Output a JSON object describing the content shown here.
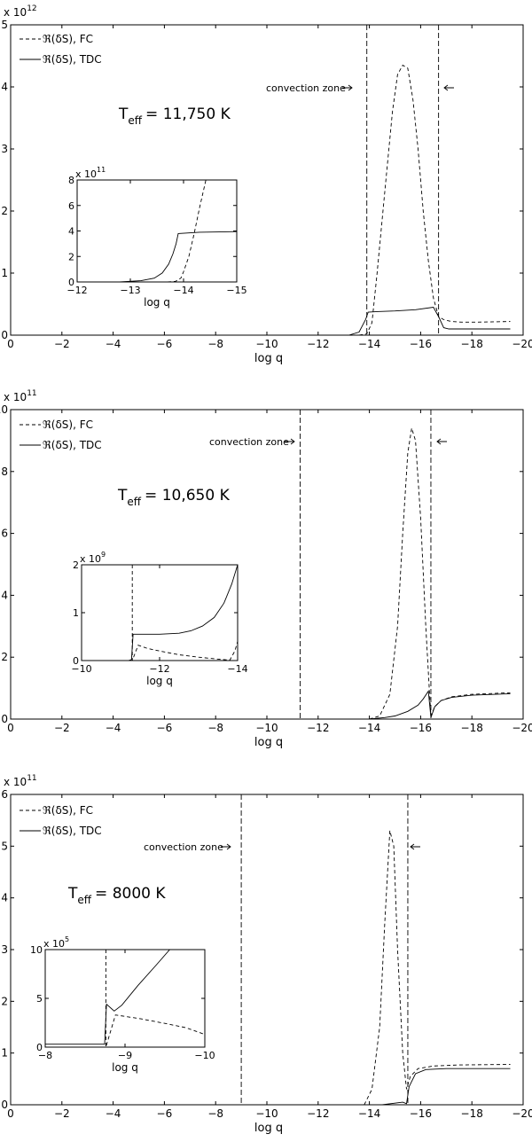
{
  "panels": [
    {
      "id": "panel1",
      "scale_base": "x 10",
      "scale_exp": "12",
      "ticks_y": [
        "0",
        "1",
        "2",
        "3",
        "4",
        "5"
      ],
      "ticks_x": [
        "0",
        "−2",
        "−4",
        "−6",
        "−8",
        "−10",
        "−12",
        "−14",
        "−16",
        "−18",
        "−20"
      ],
      "xlabel": "log q",
      "legend": [
        {
          "label": "ℜ(δS), FC",
          "style": "dashed"
        },
        {
          "label": "ℜ(δS), TDC",
          "style": "solid"
        }
      ],
      "annotation_cz": "convection zone",
      "teff_T": "T",
      "teff_sub": "eff",
      "teff_value": "= 11,750 K",
      "inset": {
        "scale_base": "x 10",
        "scale_exp": "11",
        "ticks_y": [
          "0",
          "2",
          "4",
          "6",
          "8"
        ],
        "ticks_x": [
          "−12",
          "−13",
          "−14",
          "−15"
        ],
        "xlabel": "log q"
      }
    },
    {
      "id": "panel2",
      "scale_base": "x 10",
      "scale_exp": "11",
      "ticks_y": [
        "0",
        "2",
        "4",
        "6",
        "8",
        "10"
      ],
      "ticks_x": [
        "0",
        "−2",
        "−4",
        "−6",
        "−8",
        "−10",
        "−12",
        "−14",
        "−16",
        "−18",
        "−20"
      ],
      "xlabel": "log q",
      "legend": [
        {
          "label": "ℜ(δS), FC",
          "style": "dashed"
        },
        {
          "label": "ℜ(δS), TDC",
          "style": "solid"
        }
      ],
      "annotation_cz": "convection zone",
      "teff_T": "T",
      "teff_sub": "eff",
      "teff_value": "= 10,650 K",
      "inset": {
        "scale_base": "x 10",
        "scale_exp": "9",
        "ticks_y": [
          "0",
          "1",
          "2"
        ],
        "ticks_x": [
          "−10",
          "−12",
          "−14"
        ],
        "xlabel": "log q"
      }
    },
    {
      "id": "panel3",
      "scale_base": "x 10",
      "scale_exp": "11",
      "ticks_y": [
        "0",
        "1",
        "2",
        "3",
        "4",
        "5",
        "6"
      ],
      "ticks_x": [
        "0",
        "−2",
        "−4",
        "−6",
        "−8",
        "−10",
        "−12",
        "−14",
        "−16",
        "−18",
        "−20"
      ],
      "xlabel": "log q",
      "legend": [
        {
          "label": "ℜ(δS), FC",
          "style": "dashed"
        },
        {
          "label": "ℜ(δS), TDC",
          "style": "solid"
        }
      ],
      "annotation_cz": "convection zone",
      "teff_T": "T",
      "teff_sub": "eff",
      "teff_value": "= 8000 K",
      "inset": {
        "scale_base": "x 10",
        "scale_exp": "5",
        "ticks_y": [
          "0",
          "5",
          "10"
        ],
        "ticks_x": [
          "−8",
          "−9",
          "−10"
        ],
        "xlabel": "log q"
      }
    }
  ],
  "chart_data": [
    {
      "type": "line",
      "xlabel": "log q",
      "ylabel": "",
      "xlim": [
        0,
        -20
      ],
      "ylim": [
        0,
        5
      ],
      "y_multiplier": "x 10^12",
      "teff": "11,750 K",
      "convection_zone": [
        -13.9,
        -16.7
      ],
      "series": [
        {
          "name": "ℜ(δS), FC",
          "style": "dashed",
          "x": [
            -13.6,
            -13.9,
            -14.1,
            -14.3,
            -14.6,
            -14.9,
            -15.1,
            -15.3,
            -15.5,
            -15.7,
            -15.9,
            -16.1,
            -16.3,
            -16.5,
            -16.7,
            -16.9,
            -17.2,
            -17.6,
            -18.2,
            -19.5
          ],
          "y": [
            0,
            0.02,
            0.2,
            1.0,
            2.3,
            3.6,
            4.2,
            4.35,
            4.3,
            3.8,
            3.0,
            2.0,
            1.2,
            0.6,
            0.3,
            0.25,
            0.22,
            0.21,
            0.21,
            0.22
          ]
        },
        {
          "name": "ℜ(δS), TDC",
          "style": "solid",
          "x": [
            -12.5,
            -13.2,
            -13.6,
            -13.85,
            -13.95,
            -14.3,
            -15.0,
            -15.8,
            -16.5,
            -16.7,
            -16.9,
            -17.1,
            -17.5,
            -18.0,
            -19.5
          ],
          "y": [
            0,
            0,
            0.05,
            0.25,
            0.37,
            0.38,
            0.39,
            0.41,
            0.45,
            0.3,
            0.12,
            0.1,
            0.1,
            0.1,
            0.1
          ]
        }
      ],
      "inset": {
        "xlim": [
          -12,
          -15
        ],
        "ylim": [
          0,
          8
        ],
        "y_multiplier": "x 10^11",
        "series": [
          {
            "name": "FC",
            "style": "dashed",
            "x": [
              -13.7,
              -13.85,
              -13.95,
              -14.0,
              -14.1,
              -14.2,
              -14.3,
              -14.42
            ],
            "y": [
              0,
              0.05,
              0.3,
              0.8,
              2.0,
              3.8,
              5.8,
              8.0
            ]
          },
          {
            "name": "TDC",
            "style": "solid",
            "x": [
              -12,
              -12.8,
              -13.2,
              -13.45,
              -13.6,
              -13.72,
              -13.8,
              -13.86,
              -13.9,
              -14.3,
              -15.0
            ],
            "y": [
              0,
              0,
              0.1,
              0.3,
              0.7,
              1.4,
              2.2,
              3.0,
              3.8,
              3.9,
              3.95
            ]
          }
        ]
      }
    },
    {
      "type": "line",
      "xlabel": "log q",
      "ylabel": "",
      "xlim": [
        0,
        -20
      ],
      "ylim": [
        0,
        10
      ],
      "y_multiplier": "x 10^11",
      "teff": "10,650 K",
      "convection_zone": [
        -11.3,
        -16.4
      ],
      "series": [
        {
          "name": "ℜ(δS), FC",
          "style": "dashed",
          "x": [
            -14.0,
            -14.4,
            -14.8,
            -15.1,
            -15.3,
            -15.5,
            -15.65,
            -15.8,
            -16.0,
            -16.2,
            -16.35,
            -16.4,
            -16.55,
            -16.8,
            -17.2,
            -18.0,
            -19.5
          ],
          "y": [
            0,
            0.1,
            0.8,
            3.0,
            6.0,
            8.6,
            9.4,
            9.0,
            6.5,
            3.0,
            0.8,
            0.1,
            0.4,
            0.6,
            0.72,
            0.8,
            0.85
          ]
        },
        {
          "name": "ℜ(δS), TDC",
          "style": "solid",
          "x": [
            -13.0,
            -14.0,
            -14.6,
            -15.0,
            -15.5,
            -15.9,
            -16.1,
            -16.3,
            -16.4,
            -16.55,
            -16.8,
            -17.2,
            -18.0,
            -19.5
          ],
          "y": [
            0,
            0,
            0.05,
            0.1,
            0.25,
            0.45,
            0.65,
            0.9,
            0.05,
            0.4,
            0.6,
            0.7,
            0.77,
            0.82
          ]
        }
      ],
      "inset": {
        "xlim": [
          -10,
          -14
        ],
        "ylim": [
          0,
          2
        ],
        "y_multiplier": "x 10^9",
        "series": [
          {
            "name": "FC",
            "style": "dashed",
            "x": [
              -11.3,
              -11.3,
              -11.45,
              -11.7,
              -12.0,
              -12.5,
              -13.0,
              -13.5,
              -13.8,
              -13.93,
              -14.0
            ],
            "y": [
              2.0,
              0.0,
              0.32,
              0.25,
              0.2,
              0.12,
              0.07,
              0.03,
              0.01,
              0.2,
              0.4
            ]
          },
          {
            "name": "TDC",
            "style": "solid",
            "x": [
              -10,
              -11.2,
              -11.28,
              -11.32,
              -11.6,
              -12.0,
              -12.5,
              -12.8,
              -13.1,
              -13.4,
              -13.65,
              -13.85,
              -14.0
            ],
            "y": [
              0,
              0,
              0.02,
              0.55,
              0.55,
              0.55,
              0.57,
              0.62,
              0.72,
              0.9,
              1.2,
              1.6,
              2.0
            ]
          }
        ]
      }
    },
    {
      "type": "line",
      "xlabel": "log q",
      "ylabel": "",
      "xlim": [
        0,
        -20
      ],
      "ylim": [
        0,
        6
      ],
      "y_multiplier": "x 10^11",
      "teff": "8000 K",
      "convection_zone": [
        -9.0,
        -15.5
      ],
      "series": [
        {
          "name": "ℜ(δS), FC",
          "style": "dashed",
          "x": [
            -13.8,
            -14.1,
            -14.4,
            -14.6,
            -14.8,
            -14.95,
            -15.1,
            -15.3,
            -15.45,
            -15.6,
            -15.9,
            -16.5,
            -17.5,
            -19.5
          ],
          "y": [
            0,
            0.3,
            1.5,
            3.5,
            5.3,
            5.0,
            3.0,
            1.0,
            0.3,
            0.55,
            0.7,
            0.75,
            0.77,
            0.78
          ]
        },
        {
          "name": "ℜ(δS), TDC",
          "style": "solid",
          "x": [
            -13.0,
            -14.5,
            -15.3,
            -15.45,
            -15.55,
            -15.8,
            -16.2,
            -17.0,
            -18.0,
            -19.5
          ],
          "y": [
            0,
            0,
            0.05,
            0.02,
            0.35,
            0.6,
            0.68,
            0.7,
            0.7,
            0.7
          ]
        }
      ],
      "inset": {
        "xlim": [
          -8,
          -10.5
        ],
        "ylim": [
          0,
          10
        ],
        "y_multiplier": "x 10^5",
        "series": [
          {
            "name": "FC",
            "style": "dashed",
            "x": [
              -8.95,
              -8.95,
              -9.1,
              -9.5,
              -9.9,
              -10.2,
              -10.5
            ],
            "y": [
              10,
              0,
              3.3,
              2.9,
              2.4,
              2.0,
              1.3
            ]
          },
          {
            "name": "TDC",
            "style": "solid",
            "x": [
              -8.0,
              -8.93,
              -8.96,
              -9.08,
              -9.2,
              -9.45,
              -9.75,
              -9.95
            ],
            "y": [
              0.3,
              0.3,
              4.4,
              3.7,
              4.3,
              6.3,
              8.5,
              10.0
            ]
          }
        ]
      }
    }
  ]
}
